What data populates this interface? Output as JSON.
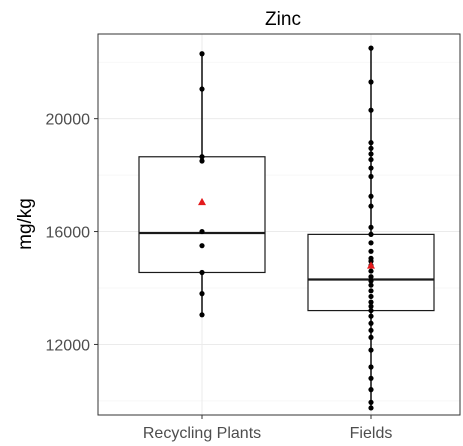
{
  "chart_data": {
    "type": "boxplot",
    "title": "Zinc",
    "ylabel": "mg/kg",
    "xlabel": "",
    "ylim": [
      9500,
      23000
    ],
    "yticks": [
      12000,
      16000,
      20000
    ],
    "ytick_labels": [
      "12000",
      "16000",
      "20000"
    ],
    "grid": true,
    "colors": {
      "points": "#000000",
      "mean_marker": "#e31a1c"
    },
    "categories": [
      "Recycling Plants",
      "Fields"
    ],
    "boxes": [
      {
        "name": "Recycling Plants",
        "q1": 14550,
        "median": 15950,
        "q3": 18650,
        "whisker_low": 13050,
        "whisker_high": 22300,
        "mean": 17050,
        "points": [
          22300,
          21050,
          18650,
          18500,
          16000,
          15500,
          14550,
          13800,
          13050
        ]
      },
      {
        "name": "Fields",
        "q1": 13200,
        "median": 14300,
        "q3": 15900,
        "whisker_low": 9750,
        "whisker_high": 22500,
        "mean": 14800,
        "points": [
          22500,
          21300,
          20300,
          19150,
          18950,
          18750,
          18550,
          18250,
          17950,
          17250,
          16900,
          16150,
          15900,
          15600,
          15300,
          15050,
          14950,
          14800,
          14600,
          14400,
          14250,
          14100,
          13900,
          13700,
          13500,
          13350,
          13200,
          13000,
          12750,
          12500,
          12250,
          11800,
          11200,
          10800,
          10400,
          9950,
          9750
        ]
      }
    ]
  }
}
